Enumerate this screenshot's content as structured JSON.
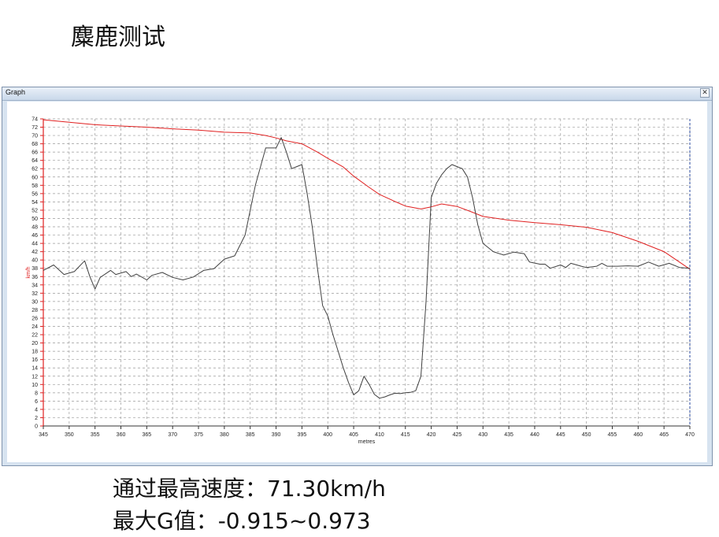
{
  "slide": {
    "title": "麋鹿测试",
    "info": [
      "通过最高速度：71.30km/h",
      "最大G值：-0.915~0.973"
    ]
  },
  "window": {
    "title": "Graph",
    "close_glyph": "✕"
  },
  "colors": {
    "speed": "#e02020",
    "g_trace": "#404040",
    "axis_y": "#e02020",
    "grid": "#9a9a9a"
  },
  "chart_data": {
    "type": "line",
    "title": "",
    "xlabel": "metres",
    "ylabel": "km/h",
    "xlim": [
      345,
      470
    ],
    "ylim": [
      0,
      74
    ],
    "x_ticks": [
      345,
      350,
      355,
      360,
      365,
      370,
      375,
      380,
      385,
      390,
      395,
      400,
      405,
      410,
      415,
      420,
      425,
      430,
      435,
      440,
      445,
      450,
      455,
      460,
      465,
      470
    ],
    "y_ticks": [
      0,
      2,
      4,
      6,
      8,
      10,
      12,
      14,
      16,
      18,
      20,
      22,
      24,
      26,
      28,
      30,
      32,
      34,
      36,
      38,
      40,
      42,
      44,
      46,
      48,
      50,
      52,
      54,
      56,
      58,
      60,
      62,
      64,
      66,
      68,
      70,
      72,
      74
    ],
    "grid": true,
    "series": [
      {
        "x": [
          345,
          350,
          355,
          360,
          365,
          370,
          375,
          380,
          385,
          388,
          390,
          392,
          395,
          398,
          400,
          403,
          405,
          408,
          410,
          413,
          415,
          418,
          420,
          422,
          425,
          428,
          430,
          435,
          440,
          445,
          450,
          455,
          460,
          465,
          470
        ],
        "y": [
          73.8,
          73.2,
          72.6,
          72.3,
          72.0,
          71.6,
          71.3,
          70.8,
          70.6,
          70.0,
          69.4,
          68.7,
          68.0,
          66.0,
          64.5,
          62.4,
          60.2,
          57.5,
          55.8,
          54.1,
          53.0,
          52.3,
          52.8,
          53.5,
          52.9,
          51.5,
          50.5,
          49.6,
          49.0,
          48.5,
          47.9,
          46.6,
          44.5,
          42.0,
          37.8
        ]
      },
      {
        "x": [
          345,
          347,
          349,
          351,
          353,
          354,
          355,
          356,
          358,
          359,
          361,
          362,
          363,
          365,
          366,
          368,
          370,
          372,
          374,
          376,
          378,
          380,
          382,
          384,
          386,
          388,
          390,
          391,
          392,
          393,
          394,
          395,
          396,
          397,
          398,
          399,
          400,
          401,
          402,
          403,
          404,
          405,
          406,
          407,
          408,
          409,
          410,
          411,
          412,
          413,
          414,
          415,
          416,
          417,
          418,
          419,
          420,
          421,
          422,
          423,
          424,
          425,
          426,
          427,
          428,
          429,
          430,
          432,
          434,
          436,
          438,
          439,
          441,
          442,
          443,
          445,
          446,
          447,
          449,
          450,
          452,
          453,
          454,
          456,
          458,
          460,
          462,
          464,
          466,
          468,
          470
        ],
        "y": [
          37.5,
          38.8,
          36.5,
          37.2,
          39.8,
          36.0,
          33.0,
          35.8,
          37.5,
          36.5,
          37.2,
          36.0,
          36.6,
          35.2,
          36.3,
          37.0,
          35.8,
          35.2,
          35.9,
          37.5,
          37.9,
          40.2,
          41.0,
          46.0,
          58.0,
          67.0,
          67.0,
          69.5,
          66.0,
          62.0,
          62.5,
          63.0,
          56.0,
          48.0,
          38.0,
          29.0,
          26.5,
          22.0,
          18.0,
          14.0,
          10.5,
          7.5,
          8.5,
          12.0,
          10.0,
          7.6,
          6.7,
          7.0,
          7.5,
          7.9,
          7.8,
          8.0,
          8.1,
          8.5,
          12.0,
          30.0,
          55.0,
          58.5,
          60.5,
          62.0,
          63.0,
          62.5,
          62.0,
          60.0,
          55.0,
          48.5,
          44.0,
          42.0,
          41.2,
          41.9,
          41.5,
          39.5,
          39.0,
          39.0,
          38.0,
          38.8,
          38.2,
          39.2,
          38.5,
          38.2,
          38.5,
          39.2,
          38.5,
          38.5,
          38.6,
          38.5,
          39.5,
          38.5,
          39.2,
          38.2,
          38.0
        ]
      }
    ]
  }
}
